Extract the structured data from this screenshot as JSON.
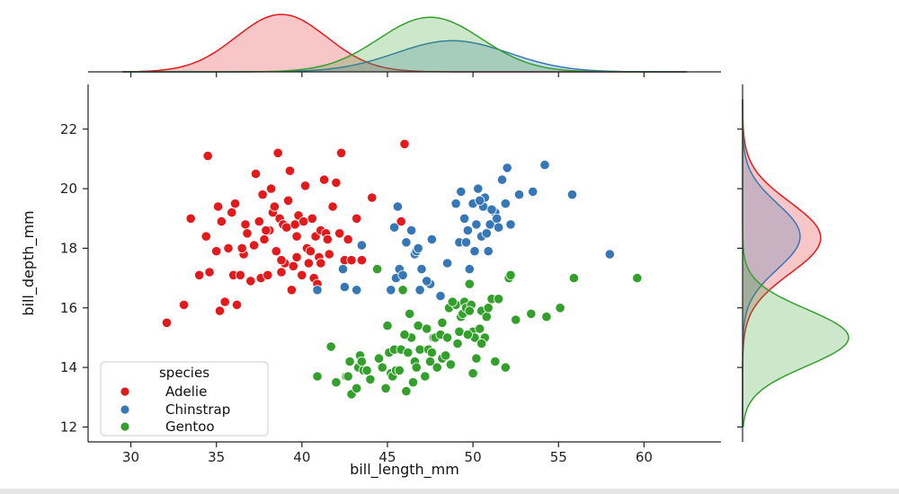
{
  "chart_data": {
    "type": "scatter",
    "xlabel": "bill_length_mm",
    "ylabel": "bill_depth_mm",
    "xlim": [
      27.5,
      64.5
    ],
    "ylim": [
      11.5,
      23.5
    ],
    "xticks": [
      30,
      35,
      40,
      45,
      50,
      55,
      60
    ],
    "yticks": [
      12,
      14,
      16,
      18,
      20,
      22
    ],
    "grid": false,
    "legend": {
      "title": "species",
      "placement": "lower-left"
    },
    "marginals": {
      "top": "kde of bill_length_mm by species",
      "right": "kde of bill_depth_mm by species"
    },
    "series": [
      {
        "name": "Adelie",
        "color": "#e31a1c",
        "kde_x": {
          "mean": 38.8,
          "sd": 2.65
        },
        "kde_y": {
          "mean": 18.35,
          "sd": 1.2
        },
        "points": [
          [
            32.1,
            15.5
          ],
          [
            33.1,
            16.1
          ],
          [
            33.5,
            19.0
          ],
          [
            34.0,
            17.1
          ],
          [
            34.4,
            18.4
          ],
          [
            34.5,
            21.1
          ],
          [
            34.6,
            17.2
          ],
          [
            35.0,
            17.9
          ],
          [
            35.1,
            19.4
          ],
          [
            35.2,
            15.9
          ],
          [
            35.3,
            18.9
          ],
          [
            35.5,
            16.2
          ],
          [
            35.7,
            18.0
          ],
          [
            35.9,
            19.2
          ],
          [
            36.0,
            17.1
          ],
          [
            36.2,
            16.1
          ],
          [
            36.4,
            17.1
          ],
          [
            36.6,
            17.8
          ],
          [
            36.7,
            18.8
          ],
          [
            36.8,
            18.5
          ],
          [
            37.0,
            16.9
          ],
          [
            37.2,
            18.1
          ],
          [
            37.3,
            20.5
          ],
          [
            37.5,
            18.9
          ],
          [
            37.6,
            17.0
          ],
          [
            37.7,
            19.8
          ],
          [
            37.8,
            18.3
          ],
          [
            38.0,
            17.1
          ],
          [
            38.1,
            18.6
          ],
          [
            38.2,
            20.0
          ],
          [
            38.3,
            19.2
          ],
          [
            38.5,
            17.9
          ],
          [
            38.6,
            21.2
          ],
          [
            38.7,
            19.0
          ],
          [
            38.8,
            17.2
          ],
          [
            38.9,
            18.8
          ],
          [
            39.0,
            17.5
          ],
          [
            39.1,
            18.7
          ],
          [
            39.2,
            19.6
          ],
          [
            39.3,
            20.6
          ],
          [
            39.5,
            17.4
          ],
          [
            39.6,
            18.8
          ],
          [
            39.7,
            18.4
          ],
          [
            39.8,
            19.1
          ],
          [
            40.0,
            17.1
          ],
          [
            40.1,
            18.9
          ],
          [
            40.2,
            20.1
          ],
          [
            40.3,
            18.0
          ],
          [
            40.5,
            17.9
          ],
          [
            40.6,
            19.0
          ],
          [
            40.7,
            17.0
          ],
          [
            40.8,
            18.4
          ],
          [
            41.0,
            17.7
          ],
          [
            41.1,
            18.6
          ],
          [
            41.3,
            20.3
          ],
          [
            41.4,
            18.5
          ],
          [
            41.5,
            18.3
          ],
          [
            41.6,
            17.8
          ],
          [
            41.8,
            19.4
          ],
          [
            42.0,
            20.2
          ],
          [
            42.2,
            18.5
          ],
          [
            42.3,
            21.2
          ],
          [
            42.5,
            17.6
          ],
          [
            42.7,
            18.3
          ],
          [
            42.9,
            17.6
          ],
          [
            43.2,
            19.0
          ],
          [
            43.5,
            17.6
          ],
          [
            44.1,
            19.7
          ],
          [
            45.8,
            18.9
          ],
          [
            46.0,
            21.5
          ],
          [
            36.1,
            19.5
          ],
          [
            37.9,
            18.6
          ],
          [
            39.7,
            17.7
          ],
          [
            40.9,
            16.8
          ],
          [
            38.8,
            17.6
          ],
          [
            41.1,
            17.5
          ],
          [
            36.5,
            18.0
          ],
          [
            38.4,
            19.4
          ],
          [
            39.4,
            16.6
          ],
          [
            40.4,
            17.5
          ]
        ]
      },
      {
        "name": "Chinstrap",
        "color": "#3677b8",
        "kde_x": {
          "mean": 48.8,
          "sd": 3.3
        },
        "kde_y": {
          "mean": 18.4,
          "sd": 1.1
        },
        "points": [
          [
            40.9,
            16.6
          ],
          [
            42.4,
            17.3
          ],
          [
            42.5,
            16.7
          ],
          [
            43.2,
            16.6
          ],
          [
            43.5,
            18.1
          ],
          [
            45.2,
            16.6
          ],
          [
            45.4,
            18.7
          ],
          [
            45.5,
            17.0
          ],
          [
            45.6,
            19.4
          ],
          [
            45.7,
            17.3
          ],
          [
            45.9,
            17.1
          ],
          [
            46.1,
            18.2
          ],
          [
            46.4,
            18.6
          ],
          [
            46.6,
            17.8
          ],
          [
            46.7,
            17.9
          ],
          [
            46.9,
            16.6
          ],
          [
            47.0,
            17.3
          ],
          [
            47.5,
            16.8
          ],
          [
            47.6,
            18.3
          ],
          [
            48.1,
            16.4
          ],
          [
            48.5,
            17.5
          ],
          [
            49.0,
            19.5
          ],
          [
            49.2,
            18.2
          ],
          [
            49.5,
            19.0
          ],
          [
            49.6,
            18.2
          ],
          [
            49.7,
            18.6
          ],
          [
            49.8,
            17.3
          ],
          [
            50.0,
            19.5
          ],
          [
            50.1,
            17.9
          ],
          [
            50.2,
            18.8
          ],
          [
            50.3,
            20.0
          ],
          [
            50.5,
            18.4
          ],
          [
            50.6,
            19.4
          ],
          [
            50.7,
            19.7
          ],
          [
            50.8,
            18.5
          ],
          [
            50.9,
            17.9
          ],
          [
            51.0,
            18.8
          ],
          [
            51.3,
            19.2
          ],
          [
            51.4,
            19.0
          ],
          [
            51.5,
            18.7
          ],
          [
            51.7,
            20.3
          ],
          [
            51.9,
            19.5
          ],
          [
            52.0,
            20.7
          ],
          [
            52.2,
            18.8
          ],
          [
            52.7,
            19.8
          ],
          [
            53.5,
            19.9
          ],
          [
            54.2,
            20.8
          ],
          [
            55.8,
            19.8
          ],
          [
            58.0,
            17.8
          ],
          [
            49.3,
            19.9
          ],
          [
            50.4,
            19.6
          ],
          [
            51.1,
            19.3
          ],
          [
            46.8,
            18.0
          ],
          [
            47.3,
            16.9
          ]
        ]
      },
      {
        "name": "Gentoo",
        "color": "#33a02c",
        "kde_x": {
          "mean": 47.5,
          "sd": 3.0
        },
        "kde_y": {
          "mean": 15.0,
          "sd": 0.95
        },
        "points": [
          [
            40.9,
            13.7
          ],
          [
            41.7,
            14.7
          ],
          [
            42.0,
            13.5
          ],
          [
            42.6,
            13.7
          ],
          [
            42.7,
            13.7
          ],
          [
            42.8,
            14.2
          ],
          [
            42.9,
            13.1
          ],
          [
            43.2,
            13.3
          ],
          [
            43.3,
            14.0
          ],
          [
            43.4,
            14.4
          ],
          [
            43.5,
            14.2
          ],
          [
            43.6,
            13.9
          ],
          [
            43.8,
            13.9
          ],
          [
            44.0,
            13.6
          ],
          [
            44.4,
            17.3
          ],
          [
            44.5,
            14.3
          ],
          [
            44.9,
            13.3
          ],
          [
            45.0,
            15.4
          ],
          [
            45.1,
            14.5
          ],
          [
            45.2,
            13.8
          ],
          [
            45.3,
            13.7
          ],
          [
            45.4,
            14.6
          ],
          [
            45.5,
            13.9
          ],
          [
            45.7,
            13.9
          ],
          [
            45.8,
            14.6
          ],
          [
            46.1,
            13.2
          ],
          [
            46.2,
            14.5
          ],
          [
            46.3,
            15.8
          ],
          [
            46.4,
            15.0
          ],
          [
            46.5,
            13.5
          ],
          [
            46.6,
            14.2
          ],
          [
            46.8,
            15.4
          ],
          [
            46.9,
            14.6
          ],
          [
            47.2,
            13.7
          ],
          [
            47.3,
            15.3
          ],
          [
            47.4,
            14.6
          ],
          [
            47.5,
            14.2
          ],
          [
            47.6,
            14.5
          ],
          [
            47.7,
            15.0
          ],
          [
            47.8,
            15.0
          ],
          [
            48.1,
            15.1
          ],
          [
            48.2,
            14.3
          ],
          [
            48.4,
            14.4
          ],
          [
            48.5,
            15.0
          ],
          [
            48.6,
            16.0
          ],
          [
            48.7,
            14.1
          ],
          [
            49.0,
            16.1
          ],
          [
            49.1,
            14.8
          ],
          [
            49.2,
            15.2
          ],
          [
            49.3,
            15.7
          ],
          [
            49.4,
            15.8
          ],
          [
            49.5,
            16.2
          ],
          [
            49.6,
            16.0
          ],
          [
            49.8,
            16.8
          ],
          [
            49.9,
            16.1
          ],
          [
            50.0,
            15.2
          ],
          [
            50.1,
            15.0
          ],
          [
            50.2,
            14.3
          ],
          [
            50.4,
            15.3
          ],
          [
            50.5,
            15.9
          ],
          [
            50.7,
            15.0
          ],
          [
            50.8,
            15.7
          ],
          [
            51.1,
            16.3
          ],
          [
            51.3,
            14.2
          ],
          [
            51.5,
            16.3
          ],
          [
            52.1,
            17.0
          ],
          [
            52.2,
            17.1
          ],
          [
            52.5,
            15.6
          ],
          [
            53.4,
            15.8
          ],
          [
            54.3,
            15.7
          ],
          [
            55.1,
            16.0
          ],
          [
            55.9,
            17.0
          ],
          [
            59.6,
            17.0
          ],
          [
            50.5,
            14.8
          ],
          [
            49.7,
            15.1
          ],
          [
            48.8,
            16.2
          ],
          [
            47.9,
            14.0
          ],
          [
            46.0,
            15.1
          ],
          [
            44.7,
            14.0
          ],
          [
            45.9,
            16.6
          ],
          [
            49.8,
            15.9
          ],
          [
            50.9,
            16.0
          ],
          [
            51.9,
            14.0
          ],
          [
            50.0,
            13.8
          ],
          [
            48.2,
            15.5
          ],
          [
            46.7,
            14.0
          ]
        ]
      }
    ]
  }
}
